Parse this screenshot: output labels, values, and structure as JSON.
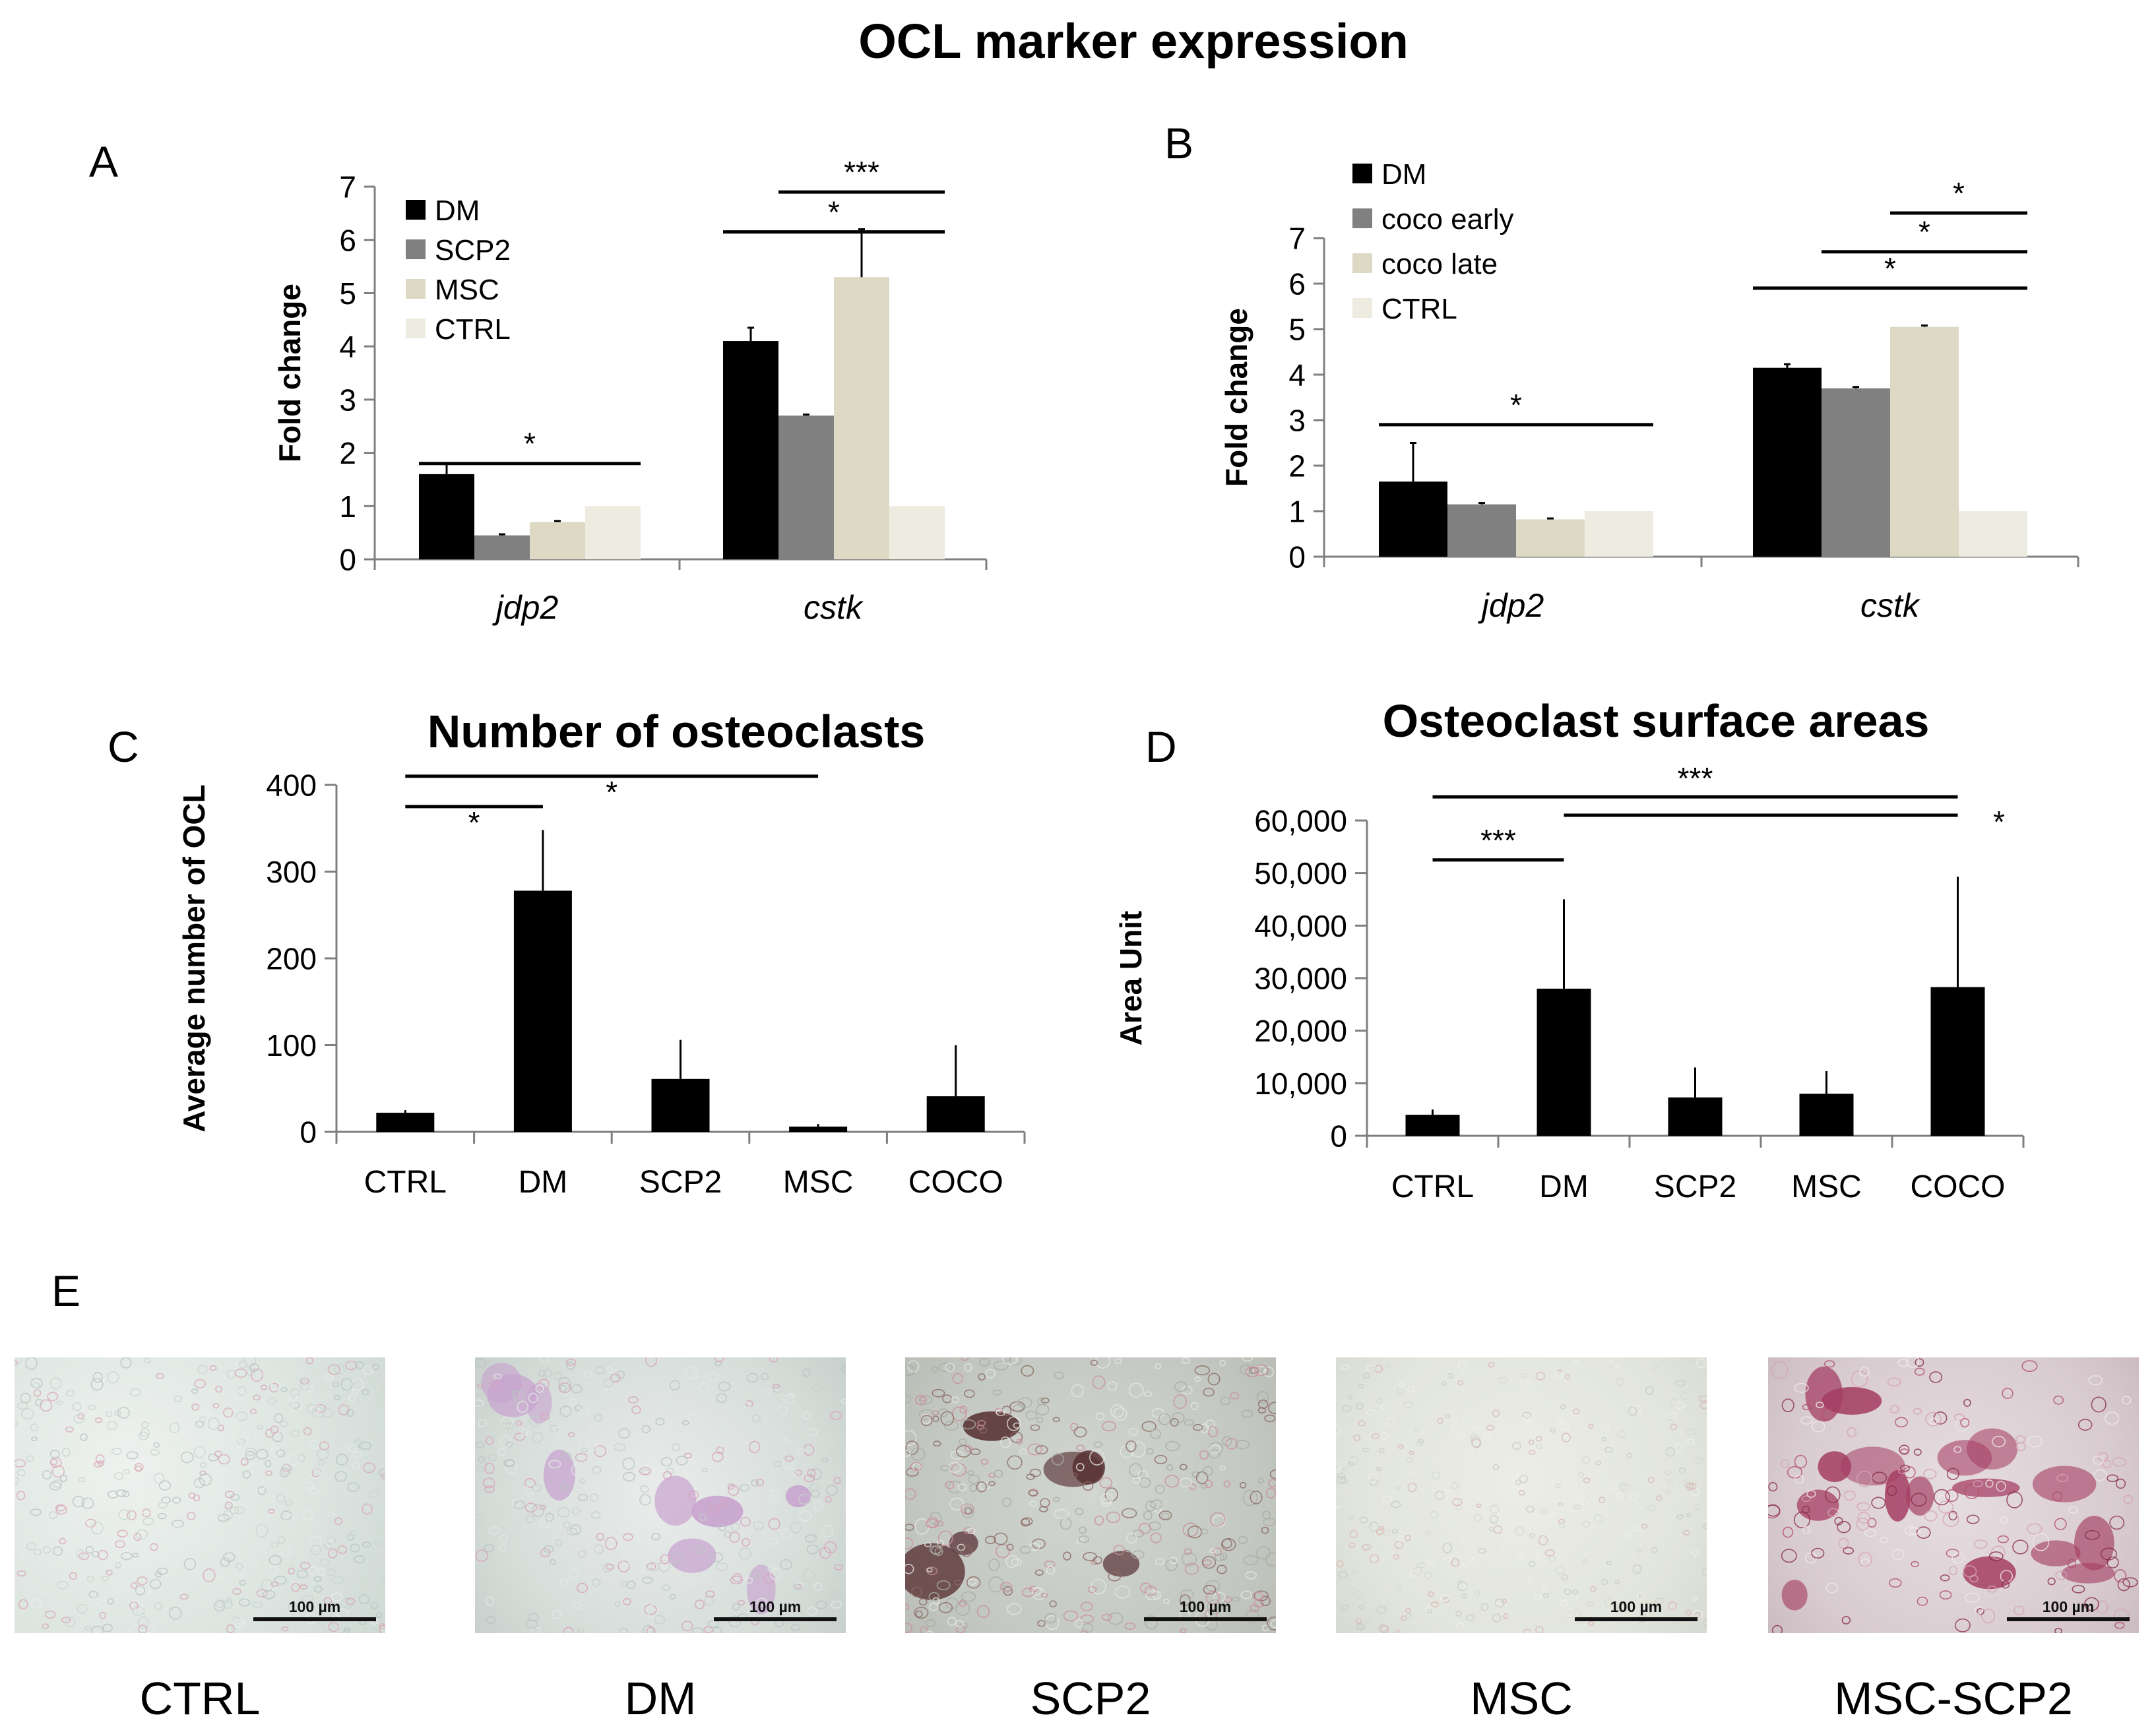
{
  "figure": {
    "title": "OCL marker expression",
    "panel_letters": {
      "A": "A",
      "B": "B",
      "C": "C",
      "D": "D",
      "E": "E"
    }
  },
  "colors": {
    "DM": "#000000",
    "SCP2": "#808080",
    "MSC": "#ddd9c4",
    "CTRL": "#eeece1",
    "coco early": "#808080",
    "coco late": "#ddd9c4",
    "axis": "#7f7f7f"
  },
  "chart_data": [
    {
      "id": "A",
      "type": "bar",
      "title": "",
      "ylabel": "Fold change",
      "xlabel": "",
      "ylim": [
        0,
        7
      ],
      "yticks": [
        "0",
        "1",
        "2",
        "3",
        "4",
        "5",
        "6",
        "7"
      ],
      "categories": [
        "jdp2",
        "cstk"
      ],
      "legend_position": "top-left",
      "series": [
        {
          "name": "DM",
          "values": [
            1.6,
            4.1
          ],
          "errors": [
            0.2,
            0.25
          ]
        },
        {
          "name": "SCP2",
          "values": [
            0.45,
            2.7
          ],
          "errors": [
            0.02,
            0.02
          ]
        },
        {
          "name": "MSC",
          "values": [
            0.7,
            5.3
          ],
          "errors": [
            0.02,
            0.9
          ]
        },
        {
          "name": "CTRL",
          "values": [
            1.0,
            1.0
          ],
          "errors": [
            0,
            0
          ]
        }
      ],
      "significance": [
        {
          "label": "*",
          "category": "jdp2",
          "from_series": "DM",
          "to_series": "CTRL",
          "level": 1.8
        },
        {
          "label": "*",
          "category": "cstk",
          "from_series": "DM",
          "to_series": "CTRL",
          "level": 6.15
        },
        {
          "label": "***",
          "category": "cstk",
          "from_series": "SCP2",
          "to_series": "CTRL",
          "level": 6.9
        }
      ]
    },
    {
      "id": "B",
      "type": "bar",
      "title": "",
      "ylabel": "Fold change",
      "xlabel": "",
      "ylim": [
        0,
        7
      ],
      "yticks": [
        "0",
        "1",
        "2",
        "3",
        "4",
        "5",
        "6",
        "7"
      ],
      "categories": [
        "jdp2",
        "cstk"
      ],
      "legend_position": "top-left",
      "series": [
        {
          "name": "DM",
          "values": [
            1.65,
            4.15
          ],
          "errors": [
            0.85,
            0.08
          ]
        },
        {
          "name": "coco early",
          "values": [
            1.15,
            3.7
          ],
          "errors": [
            0.03,
            0.03
          ]
        },
        {
          "name": "coco late",
          "values": [
            0.82,
            5.05
          ],
          "errors": [
            0.02,
            0.03
          ]
        },
        {
          "name": "CTRL",
          "values": [
            1.0,
            1.0
          ],
          "errors": [
            0,
            0
          ]
        }
      ],
      "significance": [
        {
          "label": "*",
          "category": "jdp2",
          "from_series": "DM",
          "to_series": "CTRL",
          "level": 2.9
        },
        {
          "label": "*",
          "category": "cstk",
          "from_series": "DM",
          "to_series": "CTRL",
          "level": 5.9
        },
        {
          "label": "*",
          "category": "cstk",
          "from_series": "coco early",
          "to_series": "CTRL",
          "level": 6.7
        },
        {
          "label": "*",
          "category": "cstk",
          "from_series": "coco late",
          "to_series": "CTRL",
          "level": 7.55
        }
      ]
    },
    {
      "id": "C",
      "type": "bar",
      "title": "Number of osteoclasts",
      "ylabel": "Average number of OCL",
      "xlabel": "",
      "ylim": [
        0,
        400
      ],
      "yticks": [
        "0",
        "100",
        "200",
        "300",
        "400"
      ],
      "categories": [
        "CTRL",
        "DM",
        "SCP2",
        "MSC",
        "COCO"
      ],
      "legend_position": "none",
      "series": [
        {
          "name": "OCL",
          "values": [
            22,
            278,
            61,
            6,
            41
          ],
          "errors": [
            3,
            70,
            45,
            3,
            59
          ]
        }
      ],
      "significance": [
        {
          "label": "*",
          "from": "CTRL",
          "to": "DM",
          "level": 375
        },
        {
          "label": "*",
          "from": "CTRL",
          "to": "MSC",
          "level": 410
        }
      ]
    },
    {
      "id": "D",
      "type": "bar",
      "title": "Osteoclast surface areas",
      "ylabel": "Area Unit",
      "xlabel": "",
      "ylim": [
        0,
        60000
      ],
      "yticks": [
        "0",
        "10,000",
        "20,000",
        "30,000",
        "40,000",
        "50,000",
        "60,000"
      ],
      "categories": [
        "CTRL",
        "DM",
        "SCP2",
        "MSC",
        "COCO"
      ],
      "legend_position": "none",
      "series": [
        {
          "name": "Area",
          "values": [
            4000,
            28000,
            7300,
            8000,
            28300
          ],
          "errors": [
            1000,
            17000,
            5700,
            4300,
            21000
          ]
        }
      ],
      "significance": [
        {
          "label": "***",
          "from": "CTRL",
          "to": "DM",
          "level": 52500
        },
        {
          "label": "***",
          "from": "CTRL",
          "to": "COCO",
          "level": 64500
        },
        {
          "label": "*",
          "from": "DM",
          "to": "COCO",
          "level": 61000
        }
      ]
    }
  ],
  "micrographs": [
    {
      "caption": "CTRL",
      "scale_bar": "100 µm"
    },
    {
      "caption": "DM",
      "scale_bar": "100 µm"
    },
    {
      "caption": "SCP2",
      "scale_bar": "100 µm"
    },
    {
      "caption": "MSC",
      "scale_bar": "100 µm"
    },
    {
      "caption": "MSC-SCP2",
      "scale_bar": "100 µm"
    }
  ]
}
